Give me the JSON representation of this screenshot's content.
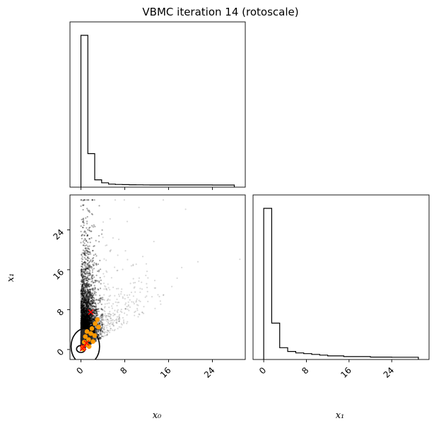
{
  "figure": {
    "title": "VBMC iteration 14 (rotoscale)"
  },
  "chart_data": [
    {
      "type": "histogram",
      "panel": "x0-marginal",
      "xlim": [
        -2,
        30
      ],
      "bin_edges": [
        0,
        1.26,
        2.52,
        3.78,
        5.04,
        6.3,
        7.56,
        8.82,
        10.08,
        11.34,
        12.6,
        18,
        24,
        28
      ],
      "heights": [
        1.0,
        0.21,
        0.035,
        0.015,
        0.006,
        0.004,
        0.003,
        0.002,
        0.0015,
        0.001,
        0.0005,
        0.0003,
        0.0002
      ],
      "xticks": [
        0,
        8,
        16,
        24
      ]
    },
    {
      "type": "scatter",
      "panel": "x0-x1-joint",
      "xlabel": "x₀",
      "ylabel": "x₁",
      "xlim": [
        -2,
        30
      ],
      "ylim": [
        -2,
        31
      ],
      "xticks": [
        0,
        8,
        16,
        24
      ],
      "yticks": [
        0,
        8,
        16,
        24
      ],
      "xtick_labels": [
        "0",
        "8",
        "16",
        "24"
      ],
      "ytick_labels": [
        "0",
        "8",
        "16",
        "24"
      ],
      "samples_color": "#000000",
      "training_points_color": "#ff9900",
      "component_centers_color": "#ff0000",
      "training_points": [
        {
          "x": 1.0,
          "y": 1.0
        },
        {
          "x": 1.4,
          "y": 2.0
        },
        {
          "x": 0.8,
          "y": 2.6
        },
        {
          "x": 1.8,
          "y": 3.2
        },
        {
          "x": 2.0,
          "y": 4.2
        },
        {
          "x": 2.6,
          "y": 5.2
        },
        {
          "x": 3.0,
          "y": 6.0
        },
        {
          "x": 2.2,
          "y": 1.6
        },
        {
          "x": 0.3,
          "y": 0.4
        },
        {
          "x": 1.5,
          "y": 0.6
        },
        {
          "x": 0.6,
          "y": 1.5
        },
        {
          "x": 2.5,
          "y": 2.8
        },
        {
          "x": 3.2,
          "y": 4.5
        },
        {
          "x": 1.1,
          "y": 3.6
        },
        {
          "x": 0.4,
          "y": 0.1
        }
      ],
      "component_centers": [
        {
          "x": 1.8,
          "y": 7.5
        },
        {
          "x": 1.0,
          "y": 1.3
        },
        {
          "x": 0.5,
          "y": 0.5
        },
        {
          "x": 0.3,
          "y": 0.2
        }
      ],
      "contours": [
        {
          "cx": 0.8,
          "cy": 0.6,
          "rx": 2.6,
          "ry": 3.6
        },
        {
          "cx": 0.0,
          "cy": 0.1,
          "rx": 0.8,
          "ry": 0.7
        }
      ]
    },
    {
      "type": "histogram",
      "panel": "x1-marginal",
      "xlabel": "x₁",
      "xlim": [
        -2,
        31
      ],
      "bin_edges": [
        0,
        1.5,
        3.0,
        4.5,
        6.0,
        7.5,
        9.0,
        10.5,
        12.0,
        15.0,
        20.0,
        24.0,
        29.0
      ],
      "heights": [
        1.0,
        0.23,
        0.065,
        0.04,
        0.03,
        0.025,
        0.02,
        0.015,
        0.01,
        0.005,
        0.002,
        0.001
      ],
      "xticks": [
        0,
        8,
        16,
        24
      ],
      "xtick_labels": [
        "0",
        "8",
        "16",
        "24"
      ]
    }
  ]
}
